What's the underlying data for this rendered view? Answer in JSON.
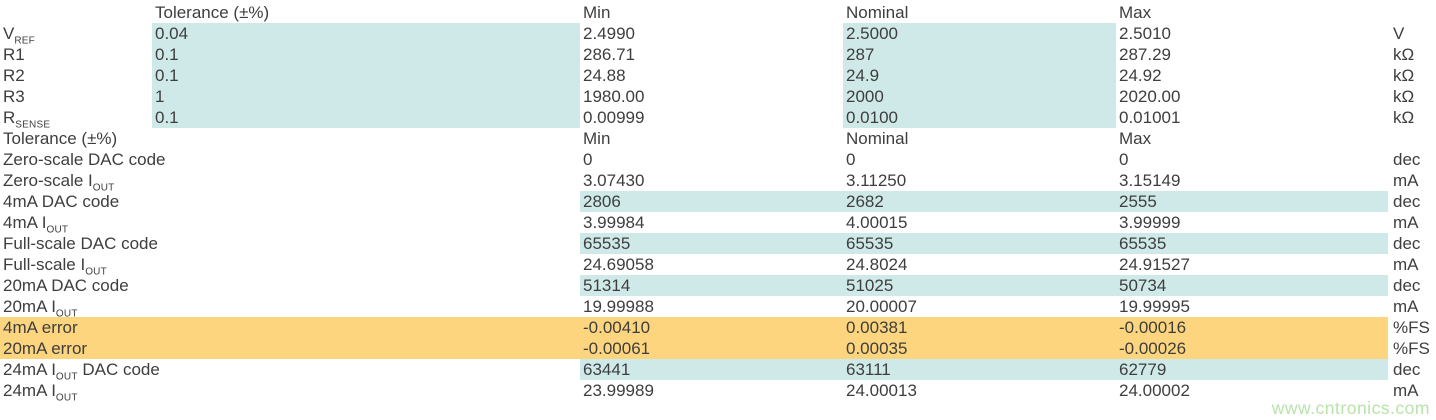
{
  "colors": {
    "highlight_teal": "#cfe9e9",
    "highlight_orange": "#fcd57e",
    "text": "#3e3e3e",
    "watermark_green": "#b8e3aa"
  },
  "table": {
    "headers": {
      "tolerance": "Tolerance (±%)",
      "min": "Min",
      "nominal": "Nominal",
      "max": "Max"
    },
    "section1_rows": [
      {
        "parts": [
          {
            "t": "V"
          },
          {
            "t": "REF",
            "s": true
          }
        ],
        "tol": "0.04",
        "min": "2.4990",
        "nom": "2.5000",
        "max": "2.5010",
        "unit": "V"
      },
      {
        "parts": [
          {
            "t": "R1"
          }
        ],
        "tol": "0.1",
        "min": "286.71",
        "nom": "287",
        "max": "287.29",
        "unit": "kΩ"
      },
      {
        "parts": [
          {
            "t": "R2"
          }
        ],
        "tol": "0.1",
        "min": "24.88",
        "nom": "24.9",
        "max": "24.92",
        "unit": "kΩ"
      },
      {
        "parts": [
          {
            "t": "R3"
          }
        ],
        "tol": "1",
        "min": "1980.00",
        "nom": "2000",
        "max": "2020.00",
        "unit": "kΩ"
      },
      {
        "parts": [
          {
            "t": "R"
          },
          {
            "t": "SENSE",
            "s": true
          }
        ],
        "tol": "0.1",
        "min": "0.00999",
        "nom": "0.0100",
        "max": "0.01001",
        "unit": "kΩ"
      }
    ],
    "section2_rows": [
      {
        "parts": [
          {
            "t": "Zero-scale DAC code"
          }
        ],
        "min": "0",
        "nom": "0",
        "max": "0",
        "unit": "dec",
        "hl": "none"
      },
      {
        "parts": [
          {
            "t": "Zero-scale I"
          },
          {
            "t": "OUT",
            "s": true
          }
        ],
        "min": "3.07430",
        "nom": "3.11250",
        "max": "3.15149",
        "unit": "mA",
        "hl": "none"
      },
      {
        "parts": [
          {
            "t": "4mA DAC code"
          }
        ],
        "min": "2806",
        "nom": "2682",
        "max": "2555",
        "unit": "dec",
        "hl": "teal"
      },
      {
        "parts": [
          {
            "t": "4mA I"
          },
          {
            "t": "OUT",
            "s": true
          }
        ],
        "min": "3.99984",
        "nom": "4.00015",
        "max": "3.99999",
        "unit": "mA",
        "hl": "none"
      },
      {
        "parts": [
          {
            "t": "Full-scale DAC code"
          }
        ],
        "min": "65535",
        "nom": "65535",
        "max": "65535",
        "unit": "dec",
        "hl": "teal"
      },
      {
        "parts": [
          {
            "t": "Full-scale I"
          },
          {
            "t": "OUT",
            "s": true
          }
        ],
        "min": "24.69058",
        "nom": "24.8024",
        "max": "24.91527",
        "unit": "mA",
        "hl": "none"
      },
      {
        "parts": [
          {
            "t": "20mA DAC code"
          }
        ],
        "min": "51314",
        "nom": "51025",
        "max": "50734",
        "unit": "dec",
        "hl": "teal"
      },
      {
        "parts": [
          {
            "t": "20mA I"
          },
          {
            "t": "OUT",
            "s": true
          }
        ],
        "min": "19.99988",
        "nom": "20.00007",
        "max": "19.99995",
        "unit": "mA",
        "hl": "none"
      },
      {
        "parts": [
          {
            "t": "4mA error"
          }
        ],
        "min": "-0.00410",
        "nom": "0.00381",
        "max": "-0.00016",
        "unit": "%FS",
        "hl": "orange"
      },
      {
        "parts": [
          {
            "t": "20mA error"
          }
        ],
        "min": "-0.00061",
        "nom": "0.00035",
        "max": "-0.00026",
        "unit": "%FS",
        "hl": "orange"
      },
      {
        "parts": [
          {
            "t": "24mA I"
          },
          {
            "t": "OUT",
            "s": true
          },
          {
            "t": " DAC code"
          }
        ],
        "min": "63441",
        "nom": "63111",
        "max": "62779",
        "unit": "dec",
        "hl": "teal"
      },
      {
        "parts": [
          {
            "t": "24mA I"
          },
          {
            "t": "OUT",
            "s": true
          }
        ],
        "min": "23.99989",
        "nom": "24.00013",
        "max": "24.00002",
        "unit": "mA",
        "hl": "none"
      }
    ]
  },
  "watermark": {
    "text": "www.cntronics.com"
  }
}
